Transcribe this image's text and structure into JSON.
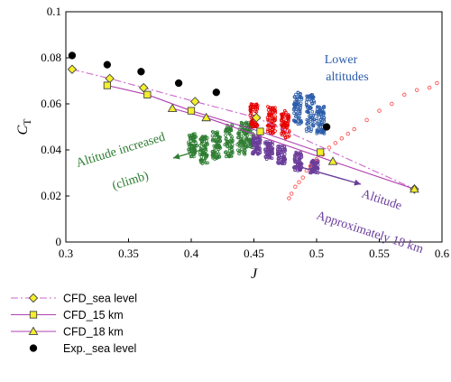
{
  "chart_data": {
    "type": "scatter",
    "title": "",
    "xlabel": "J",
    "ylabel": "C",
    "ylabel_subscript": "T",
    "xlim": [
      0.3,
      0.6
    ],
    "ylim": [
      0,
      0.1
    ],
    "x_ticks": [
      "0.3",
      "0.35",
      "0.4",
      "0.45",
      "0.5",
      "0.55",
      "0.6"
    ],
    "y_ticks": [
      "0",
      "0.02",
      "0.04",
      "0.06",
      "0.08",
      "0.1"
    ],
    "grid": false,
    "legend_position": "bottom-left",
    "series": [
      {
        "name": "CFD_sea level",
        "marker": "diamond",
        "line": "dash-dot",
        "color": "#cc66cc",
        "marker_color": "#f5ee2a",
        "x": [
          0.305,
          0.335,
          0.362,
          0.403,
          0.452,
          0.578
        ],
        "y": [
          0.075,
          0.071,
          0.067,
          0.061,
          0.054,
          0.023
        ]
      },
      {
        "name": "CFD_15 km",
        "marker": "square",
        "line": "solid",
        "color": "#b040b0",
        "marker_color": "#f5ee2a",
        "x": [
          0.333,
          0.365,
          0.4,
          0.455,
          0.503
        ],
        "y": [
          0.068,
          0.064,
          0.057,
          0.048,
          0.039
        ]
      },
      {
        "name": "CFD_18 km",
        "marker": "triangle",
        "line": "solid",
        "color": "#b040b0",
        "marker_color": "#f5ee2a",
        "x": [
          0.385,
          0.412,
          0.513,
          0.578
        ],
        "y": [
          0.058,
          0.054,
          0.035,
          0.023
        ]
      },
      {
        "name": "Exp._sea level",
        "marker": "circle",
        "line": "none",
        "color": "#000000",
        "marker_color": "#000000",
        "x": [
          0.305,
          0.333,
          0.36,
          0.39,
          0.42,
          0.508
        ],
        "y": [
          0.081,
          0.077,
          0.074,
          0.069,
          0.065,
          0.05
        ]
      }
    ],
    "flight_clusters": [
      {
        "color": "#2e7d32",
        "points": [
          [
            0.401,
            0.042,
            0.005
          ],
          [
            0.41,
            0.04,
            0.006
          ],
          [
            0.42,
            0.042,
            0.006
          ],
          [
            0.43,
            0.044,
            0.007
          ],
          [
            0.44,
            0.045,
            0.007
          ],
          [
            0.447,
            0.047,
            0.006
          ]
        ]
      },
      {
        "color": "#6a3d9a",
        "points": [
          [
            0.452,
            0.042,
            0.004
          ],
          [
            0.462,
            0.04,
            0.004
          ],
          [
            0.472,
            0.038,
            0.004
          ],
          [
            0.485,
            0.035,
            0.004
          ],
          [
            0.498,
            0.033,
            0.003
          ]
        ]
      },
      {
        "color": "#e60000",
        "points": [
          [
            0.45,
            0.055,
            0.005
          ],
          [
            0.464,
            0.053,
            0.006
          ],
          [
            0.475,
            0.051,
            0.006
          ]
        ]
      },
      {
        "color": "#2a5caa",
        "points": [
          [
            0.485,
            0.058,
            0.007
          ],
          [
            0.495,
            0.056,
            0.008
          ],
          [
            0.503,
            0.053,
            0.006
          ]
        ]
      }
    ],
    "scatter_red_open": {
      "color": "#ff5555",
      "x": [
        0.478,
        0.48,
        0.483,
        0.486,
        0.489,
        0.492,
        0.495,
        0.5,
        0.505,
        0.51,
        0.515,
        0.52,
        0.525,
        0.53,
        0.54,
        0.55,
        0.56,
        0.57,
        0.58,
        0.59,
        0.596
      ],
      "y": [
        0.019,
        0.021,
        0.024,
        0.026,
        0.028,
        0.031,
        0.033,
        0.036,
        0.038,
        0.041,
        0.043,
        0.045,
        0.047,
        0.049,
        0.053,
        0.057,
        0.06,
        0.064,
        0.066,
        0.067,
        0.069
      ]
    },
    "annotations": [
      {
        "text": "Lower",
        "color": "#2a5caa"
      },
      {
        "text": "altitudes",
        "color": "#2a5caa"
      },
      {
        "text": "Altitude increased",
        "color": "#2e7d32"
      },
      {
        "text": "(climb)",
        "color": "#2e7d32"
      },
      {
        "text": "Altitude",
        "color": "#6a3d9a"
      },
      {
        "text": "Approximately 18 km",
        "color": "#6a3d9a"
      }
    ]
  }
}
